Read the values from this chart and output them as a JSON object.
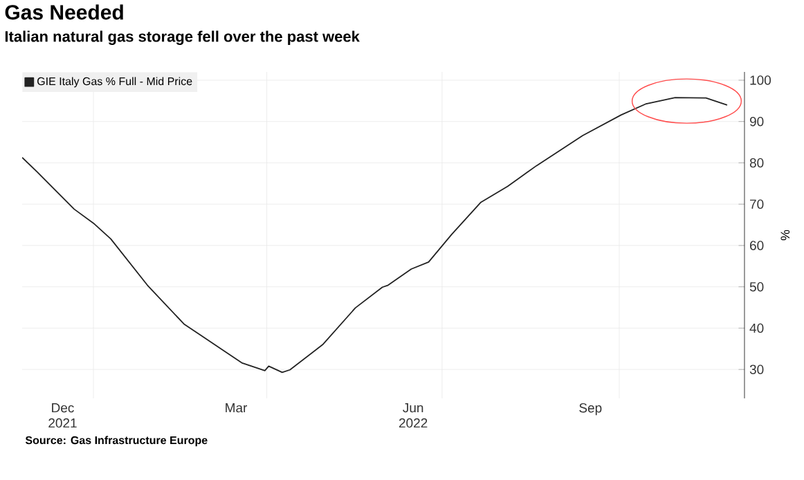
{
  "chart_data": {
    "type": "line",
    "title": "Gas Needed",
    "subtitle": "Italian natural gas storage fell over the past week",
    "ylabel": "%",
    "x": [
      "2021-11-25",
      "2021-12-03",
      "2021-12-22",
      "2022-01-01",
      "2022-01-10",
      "2022-01-29",
      "2022-02-17",
      "2022-02-26",
      "2022-03-19",
      "2022-03-31",
      "2022-04-02",
      "2022-04-09",
      "2022-04-13",
      "2022-04-30",
      "2022-05-17",
      "2022-05-31",
      "2022-06-03",
      "2022-06-15",
      "2022-06-24",
      "2022-07-06",
      "2022-07-21",
      "2022-08-04",
      "2022-08-19",
      "2022-09-12",
      "2022-10-02",
      "2022-10-15",
      "2022-10-30",
      "2022-11-15",
      "2022-11-26"
    ],
    "series": [
      {
        "name": "GIE Italy Gas % Full - Mid Price",
        "color": "#222222",
        "values": [
          81.3,
          77.7,
          68.8,
          65.4,
          61.6,
          50.4,
          41,
          38.2,
          31.6,
          29.7,
          30.8,
          29.3,
          29.9,
          36,
          44.9,
          49.9,
          50.4,
          54.3,
          56,
          62.7,
          70.4,
          74.3,
          79.3,
          86.6,
          91.6,
          94.3,
          95.8,
          95.7,
          94
        ]
      }
    ],
    "xlim": [
      "2021-11-25",
      "2022-12-05"
    ],
    "xticks": [
      {
        "value": "2021-12-16",
        "label": "Dec 2021"
      },
      {
        "value": "2022-01-01",
        "label": null
      },
      {
        "value": "2022-03-16",
        "label": "Mar"
      },
      {
        "value": "2022-04-01",
        "label": null
      },
      {
        "value": "2022-06-16",
        "label": "Jun 2022"
      },
      {
        "value": "2022-07-01",
        "label": null
      },
      {
        "value": "2022-09-16",
        "label": "Sep"
      },
      {
        "value": "2022-10-01",
        "label": null
      }
    ],
    "ylim": [
      23,
      102
    ],
    "yticks": [
      30,
      40,
      50,
      60,
      70,
      80,
      90,
      100
    ],
    "grid": true,
    "legend": "top left",
    "marker": "none",
    "line_style": "solid",
    "annotations": [
      "Source: Gas Infrastructure Europe"
    ]
  }
}
